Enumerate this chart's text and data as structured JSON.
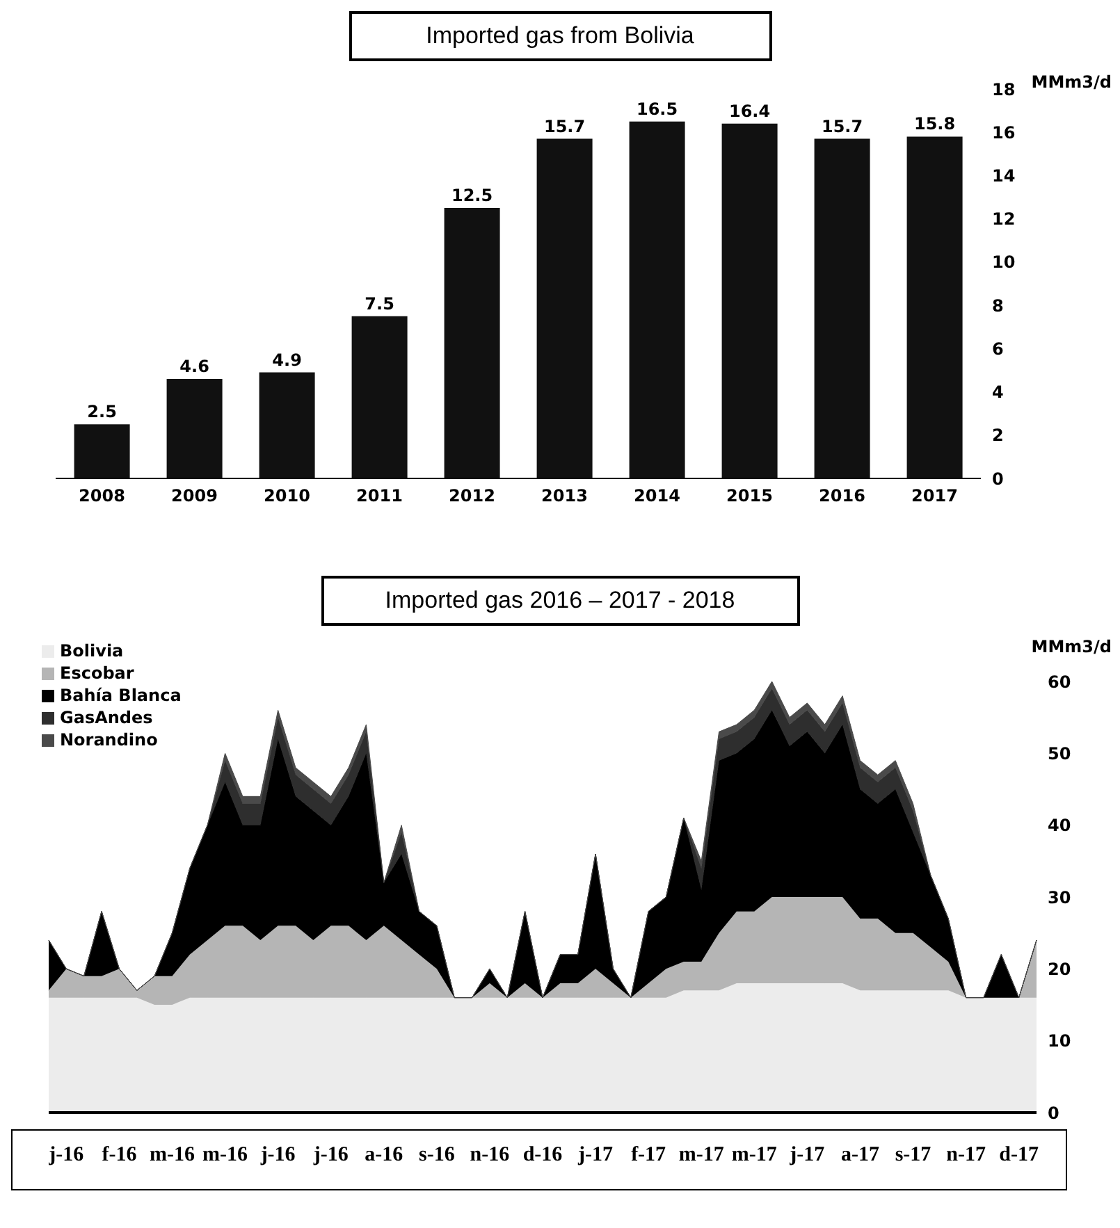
{
  "chart_data": [
    {
      "type": "bar",
      "title": "Imported gas from Bolivia",
      "ylabel": "MMm3/d",
      "categories": [
        "2008",
        "2009",
        "2010",
        "2011",
        "2012",
        "2013",
        "2014",
        "2015",
        "2016",
        "2017"
      ],
      "values": [
        2.5,
        4.6,
        4.9,
        7.5,
        12.5,
        15.7,
        16.5,
        16.4,
        15.7,
        15.8
      ],
      "color": "#111111",
      "ylim": [
        0,
        18
      ],
      "yticks": [
        0,
        2,
        4,
        6,
        8,
        10,
        12,
        14,
        16,
        18
      ],
      "data_labels": true,
      "grid": false
    },
    {
      "type": "area",
      "stacked": true,
      "title": "Imported gas 2016 – 2017 - 2018",
      "ylabel": "MMm3/d",
      "legend": "top left",
      "grid": false,
      "ylim": [
        0,
        60
      ],
      "yticks": [
        0,
        10,
        20,
        30,
        40,
        50,
        60
      ],
      "categories": [
        null,
        "j-16",
        null,
        null,
        "f-16",
        null,
        null,
        "m-16",
        null,
        null,
        "m-16",
        null,
        null,
        "j-16",
        null,
        null,
        "j-16",
        null,
        null,
        "a-16",
        null,
        null,
        "s-16",
        null,
        null,
        "n-16",
        null,
        null,
        "d-16",
        null,
        null,
        "j-17",
        null,
        null,
        "f-17",
        null,
        null,
        "m-17",
        null,
        null,
        "m-17",
        null,
        null,
        "j-17",
        null,
        null,
        "a-17",
        null,
        null,
        "s-17",
        null,
        null,
        "n-17",
        null,
        null,
        "d-17",
        null
      ],
      "series": [
        {
          "name": "Bolivia",
          "color": "#ececec",
          "values": [
            16,
            16,
            16,
            16,
            16,
            16,
            15,
            15,
            16,
            16,
            16,
            16,
            16,
            16,
            16,
            16,
            16,
            16,
            16,
            16,
            16,
            16,
            16,
            16,
            16,
            16,
            16,
            16,
            16,
            16,
            16,
            16,
            16,
            16,
            16,
            16,
            17,
            17,
            17,
            18,
            18,
            18,
            18,
            18,
            18,
            18,
            17,
            17,
            17,
            17,
            17,
            17,
            16,
            16,
            16,
            16,
            16
          ]
        },
        {
          "name": "Escobar",
          "color": "#b5b5b5",
          "values": [
            1,
            4,
            3,
            3,
            4,
            1,
            4,
            4,
            6,
            8,
            10,
            10,
            8,
            10,
            10,
            8,
            10,
            10,
            8,
            10,
            8,
            6,
            4,
            0,
            0,
            2,
            0,
            2,
            0,
            2,
            2,
            4,
            2,
            0,
            2,
            4,
            4,
            4,
            8,
            10,
            10,
            12,
            12,
            12,
            12,
            12,
            10,
            10,
            8,
            8,
            6,
            4,
            0,
            0,
            0,
            0,
            8
          ]
        },
        {
          "name": "Bahía Blanca",
          "color": "#000000",
          "values": [
            7,
            0,
            0,
            9,
            0,
            0,
            0,
            6,
            12,
            16,
            20,
            14,
            16,
            26,
            18,
            18,
            14,
            18,
            26,
            6,
            12,
            6,
            6,
            0,
            0,
            2,
            0,
            10,
            0,
            4,
            4,
            16,
            2,
            0,
            10,
            10,
            20,
            10,
            24,
            22,
            24,
            26,
            21,
            23,
            20,
            24,
            18,
            16,
            20,
            14,
            10,
            6,
            0,
            0,
            6,
            0,
            0
          ]
        },
        {
          "name": "GasAndes",
          "color": "#2e2e2e",
          "values": [
            0,
            0,
            0,
            0,
            0,
            0,
            0,
            0,
            0,
            0,
            3,
            3,
            3,
            3,
            3,
            3,
            3,
            3,
            3,
            0,
            3,
            0,
            0,
            0,
            0,
            0,
            0,
            0,
            0,
            0,
            0,
            0,
            0,
            0,
            0,
            0,
            0,
            3,
            3,
            3,
            3,
            3,
            3,
            3,
            3,
            3,
            3,
            3,
            3,
            3,
            0,
            0,
            0,
            0,
            0,
            0,
            0
          ]
        },
        {
          "name": "Norandino",
          "color": "#4a4a4a",
          "values": [
            0,
            0,
            0,
            0,
            0,
            0,
            0,
            0,
            0,
            0,
            1,
            1,
            1,
            1,
            1,
            1,
            1,
            1,
            1,
            0,
            1,
            0,
            0,
            0,
            0,
            0,
            0,
            0,
            0,
            0,
            0,
            0,
            0,
            0,
            0,
            0,
            0,
            1,
            1,
            1,
            1,
            1,
            1,
            1,
            1,
            1,
            1,
            1,
            1,
            1,
            0,
            0,
            0,
            0,
            0,
            0,
            0
          ]
        }
      ]
    }
  ]
}
